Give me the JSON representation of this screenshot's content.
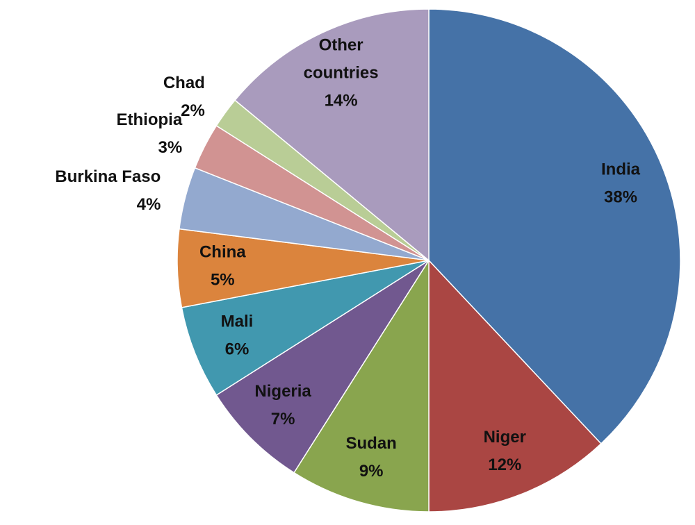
{
  "chart_data": {
    "type": "pie",
    "categories": [
      "India",
      "Niger",
      "Sudan",
      "Nigeria",
      "Mali",
      "China",
      "Burkina Faso",
      "Ethiopia",
      "Chad",
      "Other countries"
    ],
    "values": [
      38,
      12,
      9,
      7,
      6,
      5,
      4,
      3,
      2,
      14
    ],
    "value_labels": [
      "38%",
      "12%",
      "9%",
      "7%",
      "6%",
      "5%",
      "4%",
      "3%",
      "2%",
      "14%"
    ],
    "colors": [
      "#4572a7",
      "#aa4643",
      "#89a54e",
      "#71588f",
      "#4198af",
      "#db843d",
      "#93a9cf",
      "#d19392",
      "#b9cd96",
      "#a99bbd"
    ]
  }
}
